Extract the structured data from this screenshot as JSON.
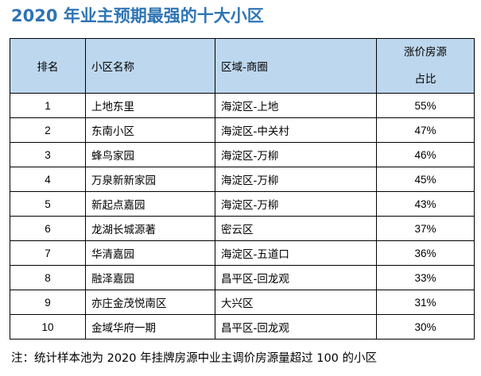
{
  "title": "2020 年业主预期最强的十大小区",
  "table": {
    "headers": {
      "rank": "排名",
      "name": "小区名称",
      "area": "区域-商圈",
      "ratio_line1": "涨价房源",
      "ratio_line2": "占比"
    },
    "rows": [
      {
        "rank": "1",
        "name": "上地东里",
        "area": "海淀区-上地",
        "ratio": "55%"
      },
      {
        "rank": "2",
        "name": "东南小区",
        "area": "海淀区-中关村",
        "ratio": "47%"
      },
      {
        "rank": "3",
        "name": "蜂鸟家园",
        "area": "海淀区-万柳",
        "ratio": "46%"
      },
      {
        "rank": "4",
        "name": "万泉新新家园",
        "area": "海淀区-万柳",
        "ratio": "45%"
      },
      {
        "rank": "5",
        "name": "新起点嘉园",
        "area": "海淀区-万柳",
        "ratio": "43%"
      },
      {
        "rank": "6",
        "name": "龙湖长城源著",
        "area": "密云区",
        "ratio": "37%"
      },
      {
        "rank": "7",
        "name": "华清嘉园",
        "area": "海淀区-五道口",
        "ratio": "36%"
      },
      {
        "rank": "8",
        "name": "融泽嘉园",
        "area": "昌平区-回龙观",
        "ratio": "33%"
      },
      {
        "rank": "9",
        "name": "亦庄金茂悦南区",
        "area": "大兴区",
        "ratio": "31%"
      },
      {
        "rank": "10",
        "name": "金域华府一期",
        "area": "昌平区-回龙观",
        "ratio": "30%"
      }
    ]
  },
  "note": "注：统计样本池为 2020 年挂牌房源中业主调价房源量超过 100 的小区",
  "colors": {
    "title": "#2e74b5",
    "header_bg": "#bdd7ee"
  }
}
